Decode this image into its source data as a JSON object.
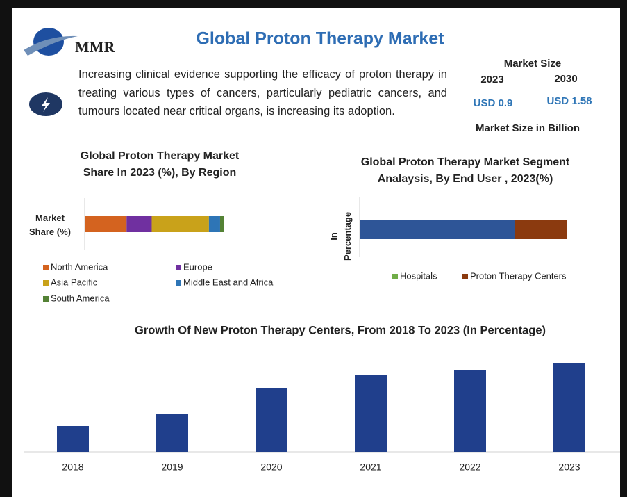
{
  "header": {
    "logo": "MMR",
    "title": "Global Proton Therapy Market",
    "description": "Increasing clinical evidence supporting the efficacy of proton therapy in treating various types of cancers, particularly pediatric cancers, and tumours located near critical organs, is increasing its adoption.",
    "market_size": {
      "label": "Market Size",
      "years": [
        "2023",
        "2030"
      ],
      "values": [
        "USD 0.9",
        "USD 1.58"
      ],
      "note": "Market Size in Billion"
    }
  },
  "chart_data": [
    {
      "type": "stacked-bar-h",
      "title": "Global Proton Therapy Market Share In 2023 (%), By Region",
      "y_label": "Market Share (%)",
      "series": [
        {
          "name": "North America",
          "color": "#d4631f",
          "values": [
            30
          ]
        },
        {
          "name": "Europe",
          "color": "#7030a0",
          "values": [
            18
          ]
        },
        {
          "name": "Asia Pacific",
          "color": "#c9a21a",
          "values": [
            41
          ]
        },
        {
          "name": "Middle East and Africa",
          "color": "#2e75b6",
          "values": [
            8
          ]
        },
        {
          "name": "South America",
          "color": "#548235",
          "values": [
            3
          ]
        }
      ]
    },
    {
      "type": "stacked-bar-h",
      "title": "Global Proton Therapy Market Segment Analaysis, By End User , 2023(%)",
      "y_label": "In Percentage",
      "series": [
        {
          "name": "Hospitals",
          "color": "#70ad47",
          "bar_color": "#2e5597",
          "values": [
            75
          ]
        },
        {
          "name": "Proton Therapy Centers",
          "color": "#8b3a0f",
          "values": [
            25
          ]
        }
      ]
    },
    {
      "type": "bar",
      "title": "Growth Of New Proton Therapy Centers, From 2018 To 2023 (In Percentage)",
      "color": "#203f8c",
      "categories": [
        "2018",
        "2019",
        "2020",
        "2021",
        "2022",
        "2023"
      ],
      "values": [
        37,
        55,
        92,
        110,
        117,
        128
      ]
    }
  ]
}
